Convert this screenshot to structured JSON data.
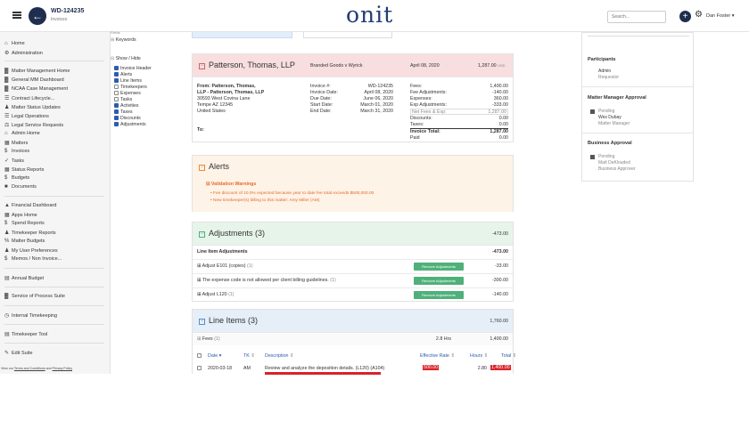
{
  "header": {
    "title": "WD-124235",
    "subtitle": "Invoices",
    "logo": "onit",
    "search_placeholder": "Search...",
    "user_name": "Dan Foster"
  },
  "sidebar": {
    "items": [
      {
        "label": "Home",
        "icon": "home-icon"
      },
      {
        "label": "Administration",
        "icon": "gear-icon"
      },
      {
        "label": "Matter Management Home",
        "icon": "building-icon"
      },
      {
        "label": "General MM Dashboard",
        "icon": "building-icon"
      },
      {
        "label": "NCAA Case Management",
        "icon": "building-icon"
      },
      {
        "label": "Contract Lifecycle...",
        "icon": "list-icon"
      },
      {
        "label": "Matter Status Updates",
        "icon": "person-icon"
      },
      {
        "label": "Legal Operations",
        "icon": "list-icon"
      },
      {
        "label": "Legal Service Requests",
        "icon": "scale-icon"
      },
      {
        "label": "Admin Home",
        "icon": "home-icon"
      },
      {
        "label": "Matters",
        "icon": "grid-icon"
      },
      {
        "label": "Invoices",
        "icon": "dollar-icon"
      },
      {
        "label": "Tasks",
        "icon": "check-icon"
      },
      {
        "label": "Status Reports",
        "icon": "calendar-icon"
      },
      {
        "label": "Budgets",
        "icon": "dollar-icon"
      },
      {
        "label": "Documents",
        "icon": "folder-icon"
      },
      {
        "label": "Financial Dashboard",
        "icon": "bank-icon"
      },
      {
        "label": "Apps Home",
        "icon": "grid-icon"
      },
      {
        "label": "Spend Reports",
        "icon": "dollar-icon"
      },
      {
        "label": "Timekeeper Reports",
        "icon": "group-icon"
      },
      {
        "label": "Matter Budgets",
        "icon": "percent-icon"
      },
      {
        "label": "My User Preferences",
        "icon": "person-icon"
      },
      {
        "label": "Memos / Non Invoice...",
        "icon": "dollar-icon"
      },
      {
        "label": "Annual Budget",
        "icon": "book-icon"
      },
      {
        "label": "Service of Process Suite",
        "icon": "building-icon"
      },
      {
        "label": "Internal Timekeeping",
        "icon": "clock-icon"
      },
      {
        "label": "Timekeeper Tool",
        "icon": "card-icon"
      },
      {
        "label": "Edit Suite",
        "icon": "pencil-icon"
      }
    ],
    "footer_prefix": "View our",
    "footer_link1": "Terms and Conditions",
    "footer_mid": "and",
    "footer_link2": "Privacy Policy"
  },
  "filters": {
    "top_cut": "Fields",
    "keywords": "Keywords",
    "show_hide": "Show / Hide",
    "options": [
      {
        "label": "Invoice Header",
        "checked": true
      },
      {
        "label": "Alerts",
        "checked": true
      },
      {
        "label": "Line Items",
        "checked": true
      },
      {
        "label": "Timekeepers",
        "checked": false
      },
      {
        "label": "Expenses",
        "checked": false
      },
      {
        "label": "Tasks",
        "checked": false
      },
      {
        "label": "Activities",
        "checked": true
      },
      {
        "label": "Taxes",
        "checked": true
      },
      {
        "label": "Discounts",
        "checked": true
      },
      {
        "label": "Adjustments",
        "checked": true
      }
    ]
  },
  "invoice_header": {
    "firm": "Patterson, Thomas, LLP",
    "matter": "Branded Goods v Wyrick",
    "date": "April 08, 2020",
    "amount": "1,287.00",
    "amount_unit": "USD",
    "from_line1": "From: Patterson, Thomas,",
    "from_line2": "LLP - Patterson, Thomas, LLP",
    "address1": "30593 West Covina Lane",
    "address2": "Tempe AZ 12345",
    "country": "United States",
    "to": "To:",
    "meta": [
      {
        "label": "Invoice #:",
        "value": "WD-124235"
      },
      {
        "label": "Invoice Date:",
        "value": "April 08, 2020"
      },
      {
        "label": "Due Date:",
        "value": "June 06, 2020"
      },
      {
        "label": "Start Date:",
        "value": "March 01, 2020"
      },
      {
        "label": "End Date:",
        "value": "March 31, 2020"
      }
    ],
    "totals": [
      {
        "label": "Fees:",
        "value": "1,400.00"
      },
      {
        "label": "Fee Adjustments:",
        "value": "-140.00"
      },
      {
        "label": "Expenses:",
        "value": "360.00"
      },
      {
        "label": "Exp Adjustments:",
        "value": "-333.00"
      },
      {
        "label": "Net Fees & Exp:",
        "value": "1,287.00"
      },
      {
        "label": "Discounts:",
        "value": "0.00"
      },
      {
        "label": "Taxes:",
        "value": "0.00"
      },
      {
        "label": "Invoice Total:",
        "value": "1,287.00"
      },
      {
        "label": "Paid",
        "value": "0.00"
      }
    ]
  },
  "alerts": {
    "title": "Alerts",
    "section": "Validation Warnings",
    "items": [
      "Fee discount of 10.0% expected because year to date fee total exceeds $500,000.00",
      "New timekeeper(s) billing to this matter: Amy Miller (AM)"
    ]
  },
  "adjustments": {
    "title": "Adjustments (3)",
    "total": "-473.00",
    "subheader": "Line Item Adjustments",
    "subtotal": "-473.00",
    "remove_label": "Remove Adjustments",
    "rows": [
      {
        "label": "Adjust E101 (copies)",
        "count": "(1)",
        "amount": "-33.00"
      },
      {
        "label": "The expense code is not allowed per client billing guidelines.",
        "count": "(1)",
        "amount": "-300.00"
      },
      {
        "label": "Adjust L120",
        "count": "(1)",
        "amount": "-140.00"
      }
    ]
  },
  "line_items": {
    "title": "Line Items (3)",
    "total": "1,760.00",
    "fees_label": "Fees",
    "fees_count": "(1)",
    "fees_hours": "2.8 Hrs",
    "fees_total": "1,400.00",
    "columns": [
      "Date",
      "TK",
      "Description",
      "Effective Rate",
      "Hours",
      "Total"
    ],
    "row": {
      "date": "2020-03-18",
      "tk": "AM",
      "desc": "Review and analyze the deposition details. (L120) (A104)",
      "rate": "500.00",
      "hours": "2.80",
      "total": "1,400.00"
    }
  },
  "right_panel": {
    "participants_title": "Participants",
    "participant_name": "Admin",
    "participant_role": "Requestor",
    "approval_title": "Matter Manager Approval",
    "approval_status": "Pending",
    "approval_name": "Wes Dubay",
    "approval_role": "Matter Manager",
    "business_title": "Business Approval",
    "business_status": "Pending",
    "business_name": "Matt DeKlouded",
    "business_role": "Business Approver"
  },
  "colors": {
    "navy": "#1f2d4e",
    "header_pink": "#f8dede",
    "alert_orange": "#fdf3e7",
    "adj_green": "#e7f4ea",
    "line_blue": "#e6eef8",
    "button_green": "#4fb07a"
  }
}
